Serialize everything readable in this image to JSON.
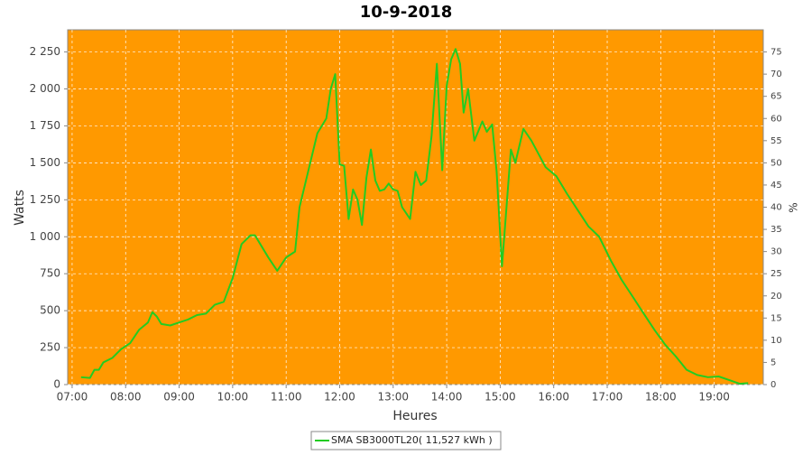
{
  "chart_data": {
    "type": "line",
    "title": "10-9-2018",
    "x_label": "Heures",
    "y_label": "Watts",
    "y2_label": "%",
    "background": "#ff9900",
    "grid": true,
    "xlim": [
      "06:55",
      "19:55"
    ],
    "xticks": [
      "07:00",
      "08:00",
      "09:00",
      "10:00",
      "11:00",
      "12:00",
      "13:00",
      "14:00",
      "15:00",
      "16:00",
      "17:00",
      "18:00",
      "19:00"
    ],
    "ylim": [
      0,
      2400
    ],
    "yticks": [
      0,
      250,
      500,
      750,
      {
        "value": 1000,
        "label": "1 000"
      },
      {
        "value": 1250,
        "label": "1 250"
      },
      {
        "value": 1500,
        "label": "1 500"
      },
      {
        "value": 1750,
        "label": "1 750"
      },
      {
        "value": 2000,
        "label": "2 000"
      },
      {
        "value": 2250,
        "label": "2 250"
      }
    ],
    "y2lim": [
      0,
      80
    ],
    "y2ticks": [
      0,
      5,
      10,
      15,
      20,
      25,
      30,
      35,
      40,
      45,
      50,
      55,
      60,
      65,
      70,
      75
    ],
    "x": [
      "07:10",
      "07:20",
      "07:25",
      "07:30",
      "07:35",
      "07:45",
      "07:55",
      "08:05",
      "08:15",
      "08:25",
      "08:30",
      "08:35",
      "08:40",
      "08:50",
      "09:00",
      "09:10",
      "09:20",
      "09:30",
      "09:40",
      "09:50",
      "10:00",
      "10:10",
      "10:20",
      "10:25",
      "10:30",
      "10:40",
      "10:50",
      "11:00",
      "11:10",
      "11:15",
      "11:25",
      "11:35",
      "11:45",
      "11:50",
      "11:55",
      "12:00",
      "12:05",
      "12:10",
      "12:15",
      "12:20",
      "12:25",
      "12:30",
      "12:35",
      "12:40",
      "12:45",
      "12:50",
      "12:55",
      "13:00",
      "13:05",
      "13:10",
      "13:19",
      "13:25",
      "13:31",
      "13:37",
      "13:43",
      "13:49",
      "13:55",
      "14:00",
      "14:05",
      "14:10",
      "14:15",
      "14:19",
      "14:24",
      "14:31",
      "14:40",
      "14:45",
      "14:51",
      "14:56",
      "15:02",
      "15:12",
      "15:17",
      "15:26",
      "15:35",
      "15:43",
      "15:51",
      "16:03",
      "16:15",
      "16:27",
      "16:39",
      "16:51",
      "17:04",
      "17:16",
      "17:28",
      "17:41",
      "17:53",
      "18:05",
      "18:17",
      "18:29",
      "18:41",
      "18:53",
      "19:05",
      "19:17",
      "19:29",
      "19:38"
    ],
    "series": [
      {
        "name": "SMA SB3000TL20( 11,527 kWh )",
        "color": "#22cc22",
        "values": [
          50,
          45,
          100,
          100,
          150,
          180,
          240,
          280,
          370,
          420,
          490,
          460,
          410,
          400,
          420,
          440,
          470,
          480,
          540,
          560,
          720,
          950,
          1010,
          1010,
          960,
          860,
          770,
          860,
          900,
          1200,
          1450,
          1700,
          1800,
          2000,
          2100,
          1490,
          1480,
          1120,
          1320,
          1250,
          1080,
          1400,
          1590,
          1380,
          1310,
          1320,
          1360,
          1320,
          1310,
          1200,
          1120,
          1440,
          1350,
          1380,
          1680,
          2170,
          1450,
          2020,
          2200,
          2270,
          2170,
          1840,
          2000,
          1650,
          1780,
          1710,
          1760,
          1440,
          800,
          1590,
          1500,
          1730,
          1650,
          1560,
          1470,
          1410,
          1290,
          1180,
          1070,
          1000,
          840,
          710,
          600,
          480,
          370,
          270,
          190,
          100,
          65,
          50,
          55,
          30,
          5,
          10
        ]
      }
    ]
  }
}
